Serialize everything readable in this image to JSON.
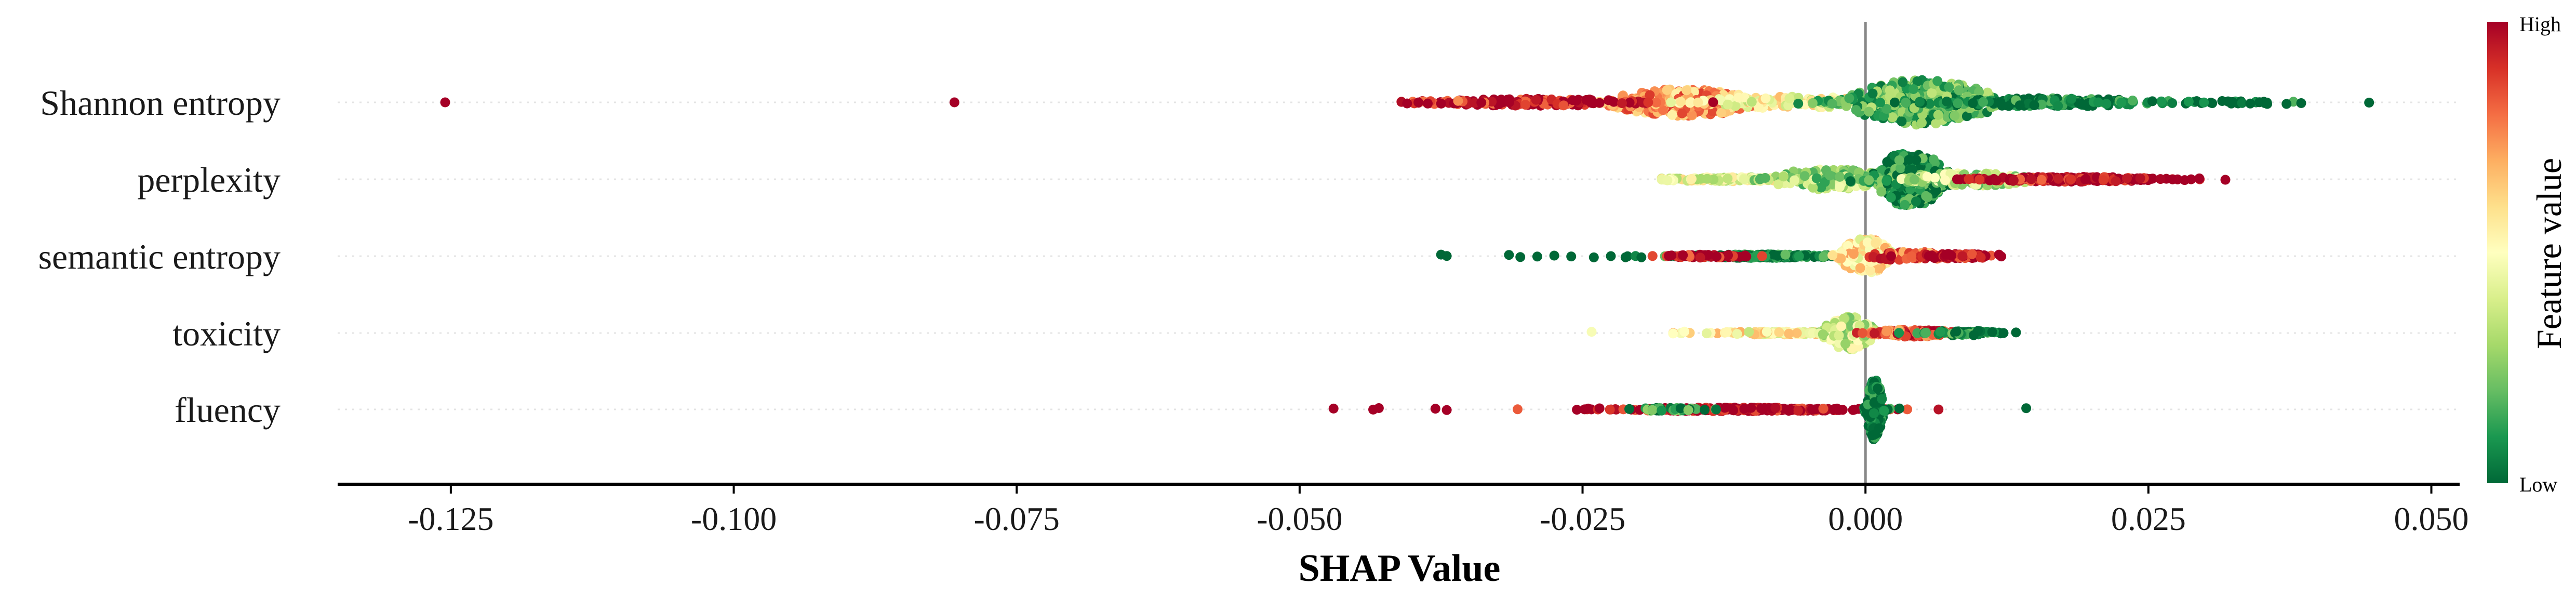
{
  "chart_data": {
    "type": "scatter",
    "subtype": "shap-beeswarm",
    "xlabel": "SHAP Value",
    "xlim": [
      -0.135,
      0.0525
    ],
    "xticks": [
      -0.125,
      -0.1,
      -0.075,
      -0.05,
      -0.025,
      0.0,
      0.025,
      0.05
    ],
    "xtick_labels": [
      "-0.125",
      "-0.100",
      "-0.075",
      "-0.050",
      "-0.025",
      "0.000",
      "0.025",
      "0.050"
    ],
    "zero_line": 0.0,
    "features": [
      {
        "name": "Shannon entropy",
        "x_range": [
          -0.041,
          0.045
        ],
        "outliers": [
          {
            "x": -0.1255,
            "feature_value": 1.0
          },
          {
            "x": -0.0805,
            "feature_value": 1.0
          }
        ],
        "clusters": [
          {
            "x_center": -0.016,
            "x_spread": 0.0035,
            "width": 0.45,
            "count": 330,
            "feature_value": 0.72
          },
          {
            "x_center": -0.007,
            "x_spread": 0.0045,
            "width": 0.2,
            "count": 110,
            "feature_value": 0.5
          },
          {
            "x_center": -0.03,
            "x_spread": 0.0055,
            "width": 0.12,
            "count": 150,
            "feature_value": 0.95
          },
          {
            "x_center": 0.005,
            "x_spread": 0.0035,
            "width": 0.75,
            "count": 420,
            "feature_value": 0.18
          },
          {
            "x_center": 0.016,
            "x_spread": 0.0055,
            "width": 0.14,
            "count": 170,
            "feature_value": 0.05
          },
          {
            "x_center": 0.03,
            "x_spread": 0.0055,
            "width": 0.05,
            "count": 35,
            "feature_value": 0.0
          }
        ],
        "sparse_points": [
          {
            "x": 0.0445,
            "feature_value": 0.0
          },
          {
            "x": 0.0385,
            "feature_value": 0.0
          },
          {
            "x": 0.0372,
            "feature_value": 0.0
          },
          {
            "x": 0.0355,
            "feature_value": 0.0
          },
          {
            "x": 0.034,
            "feature_value": 0.0
          },
          {
            "x": -0.0405,
            "feature_value": 1.0
          },
          {
            "x": -0.0395,
            "feature_value": 1.0
          },
          {
            "x": -0.0375,
            "feature_value": 1.0
          },
          {
            "x": -0.036,
            "feature_value": 0.75
          }
        ]
      },
      {
        "name": "perplexity",
        "x_range": [
          -0.018,
          0.032
        ],
        "outliers": [],
        "clusters": [
          {
            "x_center": -0.012,
            "x_spread": 0.0035,
            "width": 0.07,
            "count": 150,
            "feature_value": 0.45
          },
          {
            "x_center": -0.003,
            "x_spread": 0.003,
            "width": 0.35,
            "count": 170,
            "feature_value": 0.3
          },
          {
            "x_center": 0.004,
            "x_spread": 0.0018,
            "width": 0.9,
            "count": 300,
            "feature_value": 0.1
          },
          {
            "x_center": 0.0095,
            "x_spread": 0.003,
            "width": 0.22,
            "count": 130,
            "feature_value": 0.35
          },
          {
            "x_center": 0.018,
            "x_spread": 0.0045,
            "width": 0.08,
            "count": 200,
            "feature_value": 0.98
          }
        ],
        "sparse_points": [
          {
            "x": 0.0318,
            "feature_value": 1.0
          },
          {
            "x": 0.0295,
            "feature_value": 1.0
          },
          {
            "x": 0.0282,
            "feature_value": 1.0
          },
          {
            "x": -0.0175,
            "feature_value": 0.45
          }
        ]
      },
      {
        "name": "semantic entropy",
        "x_range": [
          -0.0375,
          0.012
        ],
        "outliers": [],
        "clusters": [
          {
            "x_center": -0.009,
            "x_spread": 0.004,
            "width": 0.06,
            "count": 220,
            "feature_value": 0.03
          },
          {
            "x_center": -0.014,
            "x_spread": 0.002,
            "width": 0.05,
            "count": 50,
            "feature_value": 0.97
          },
          {
            "x_center": 0.0,
            "x_spread": 0.0012,
            "width": 0.6,
            "count": 180,
            "feature_value": 0.55
          },
          {
            "x_center": 0.004,
            "x_spread": 0.002,
            "width": 0.15,
            "count": 60,
            "feature_value": 0.8
          },
          {
            "x_center": 0.008,
            "x_spread": 0.002,
            "width": 0.08,
            "count": 90,
            "feature_value": 0.98
          }
        ],
        "sparse_points": [
          {
            "x": -0.0375,
            "feature_value": 0.0
          },
          {
            "x": -0.037,
            "feature_value": 0.0
          },
          {
            "x": -0.0315,
            "feature_value": 0.0
          },
          {
            "x": -0.0305,
            "feature_value": 0.0
          },
          {
            "x": -0.029,
            "feature_value": 0.0
          },
          {
            "x": -0.0275,
            "feature_value": 0.0
          },
          {
            "x": -0.026,
            "feature_value": 0.0
          },
          {
            "x": -0.024,
            "feature_value": 0.0
          },
          {
            "x": -0.0225,
            "feature_value": 0.0
          },
          {
            "x": -0.0212,
            "feature_value": 0.0
          },
          {
            "x": -0.0198,
            "feature_value": 0.0
          },
          {
            "x": 0.0118,
            "feature_value": 1.0
          }
        ]
      },
      {
        "name": "toxicity",
        "x_range": [
          -0.0245,
          0.0135
        ],
        "outliers": [],
        "clusters": [
          {
            "x_center": -0.008,
            "x_spread": 0.0035,
            "width": 0.05,
            "count": 110,
            "feature_value": 0.52
          },
          {
            "x_center": -0.0015,
            "x_spread": 0.0012,
            "width": 0.55,
            "count": 150,
            "feature_value": 0.38
          },
          {
            "x_center": 0.004,
            "x_spread": 0.002,
            "width": 0.12,
            "count": 120,
            "feature_value": 0.85
          },
          {
            "x_center": 0.0085,
            "x_spread": 0.0018,
            "width": 0.08,
            "count": 50,
            "feature_value": 0.1
          }
        ],
        "sparse_points": [
          {
            "x": -0.0242,
            "feature_value": 0.48
          },
          {
            "x": -0.017,
            "feature_value": 0.5
          },
          {
            "x": -0.016,
            "feature_value": 0.5
          },
          {
            "x": 0.0112,
            "feature_value": 0.0
          },
          {
            "x": 0.0122,
            "feature_value": 0.0
          },
          {
            "x": 0.0133,
            "feature_value": 0.0
          }
        ]
      },
      {
        "name": "fluency",
        "x_range": [
          -0.047,
          0.0145
        ],
        "outliers": [],
        "clusters": [
          {
            "x_center": -0.011,
            "x_spread": 0.006,
            "width": 0.06,
            "count": 230,
            "feature_value": 0.99
          },
          {
            "x_center": -0.0175,
            "x_spread": 0.002,
            "width": 0.05,
            "count": 40,
            "feature_value": 0.1
          },
          {
            "x_center": 0.0008,
            "x_spread": 0.0004,
            "width": 1.0,
            "count": 210,
            "feature_value": 0.0
          }
        ],
        "sparse_points": [
          {
            "x": -0.047,
            "feature_value": 1.0
          },
          {
            "x": -0.0435,
            "feature_value": 1.0
          },
          {
            "x": -0.043,
            "feature_value": 1.0
          },
          {
            "x": -0.038,
            "feature_value": 1.0
          },
          {
            "x": -0.037,
            "feature_value": 1.0
          },
          {
            "x": -0.0255,
            "feature_value": 1.0
          },
          {
            "x": -0.0245,
            "feature_value": 1.0
          },
          {
            "x": -0.0235,
            "feature_value": 1.0
          },
          {
            "x": 0.003,
            "feature_value": 0.0
          },
          {
            "x": 0.0142,
            "feature_value": 0.0
          }
        ]
      }
    ],
    "colorbar": {
      "label": "Feature value",
      "high_label": "High",
      "low_label": "Low",
      "colormap": "RdYlGn_r",
      "stops": [
        "#a50026",
        "#d73027",
        "#f46d43",
        "#fdae61",
        "#fee08b",
        "#ffffbf",
        "#d9ef8b",
        "#a6d96a",
        "#66bd63",
        "#1a9850",
        "#006837"
      ]
    }
  }
}
